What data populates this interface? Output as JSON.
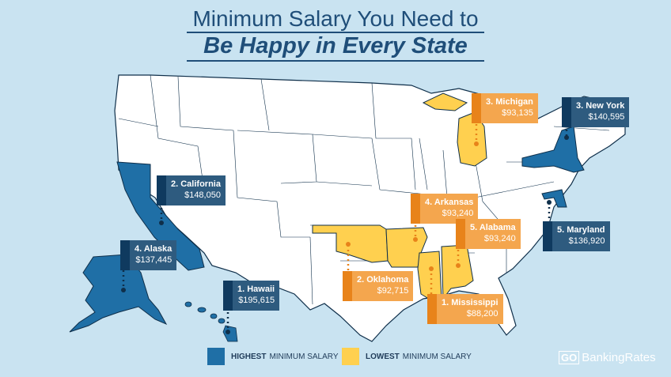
{
  "title": {
    "line1": "Minimum Salary You Need to",
    "line2": "Be Happy in Every State"
  },
  "colors": {
    "background": "#c9e3f1",
    "highest": "#1f6fa6",
    "lowest": "#ffd04f",
    "land": "#ffffff",
    "outline": "#0f2f4a"
  },
  "callouts": [
    {
      "rank": "2. California",
      "salary": "$148,050",
      "group": "highest"
    },
    {
      "rank": "4. Alaska",
      "salary": "$137,445",
      "group": "highest"
    },
    {
      "rank": "1. Hawaii",
      "salary": "$195,615",
      "group": "highest"
    },
    {
      "rank": "3. New York",
      "salary": "$140,595",
      "group": "highest"
    },
    {
      "rank": "5. Maryland",
      "salary": "$136,920",
      "group": "highest"
    },
    {
      "rank": "3. Michigan",
      "salary": "$93,135",
      "group": "lowest"
    },
    {
      "rank": "4. Arkansas",
      "salary": "$93,240",
      "group": "lowest"
    },
    {
      "rank": "5. Alabama",
      "salary": "$93,240",
      "group": "lowest"
    },
    {
      "rank": "2. Oklahoma",
      "salary": "$92,715",
      "group": "lowest"
    },
    {
      "rank": "1. Mississippi",
      "salary": "$88,200",
      "group": "lowest"
    }
  ],
  "legend": {
    "highest_bold": "HIGHEST",
    "highest_rest": "MINIMUM SALARY",
    "lowest_bold": "LOWEST",
    "lowest_rest": "MINIMUM SALARY"
  },
  "brand": {
    "go": "GO",
    "rest": "BankingRates"
  }
}
